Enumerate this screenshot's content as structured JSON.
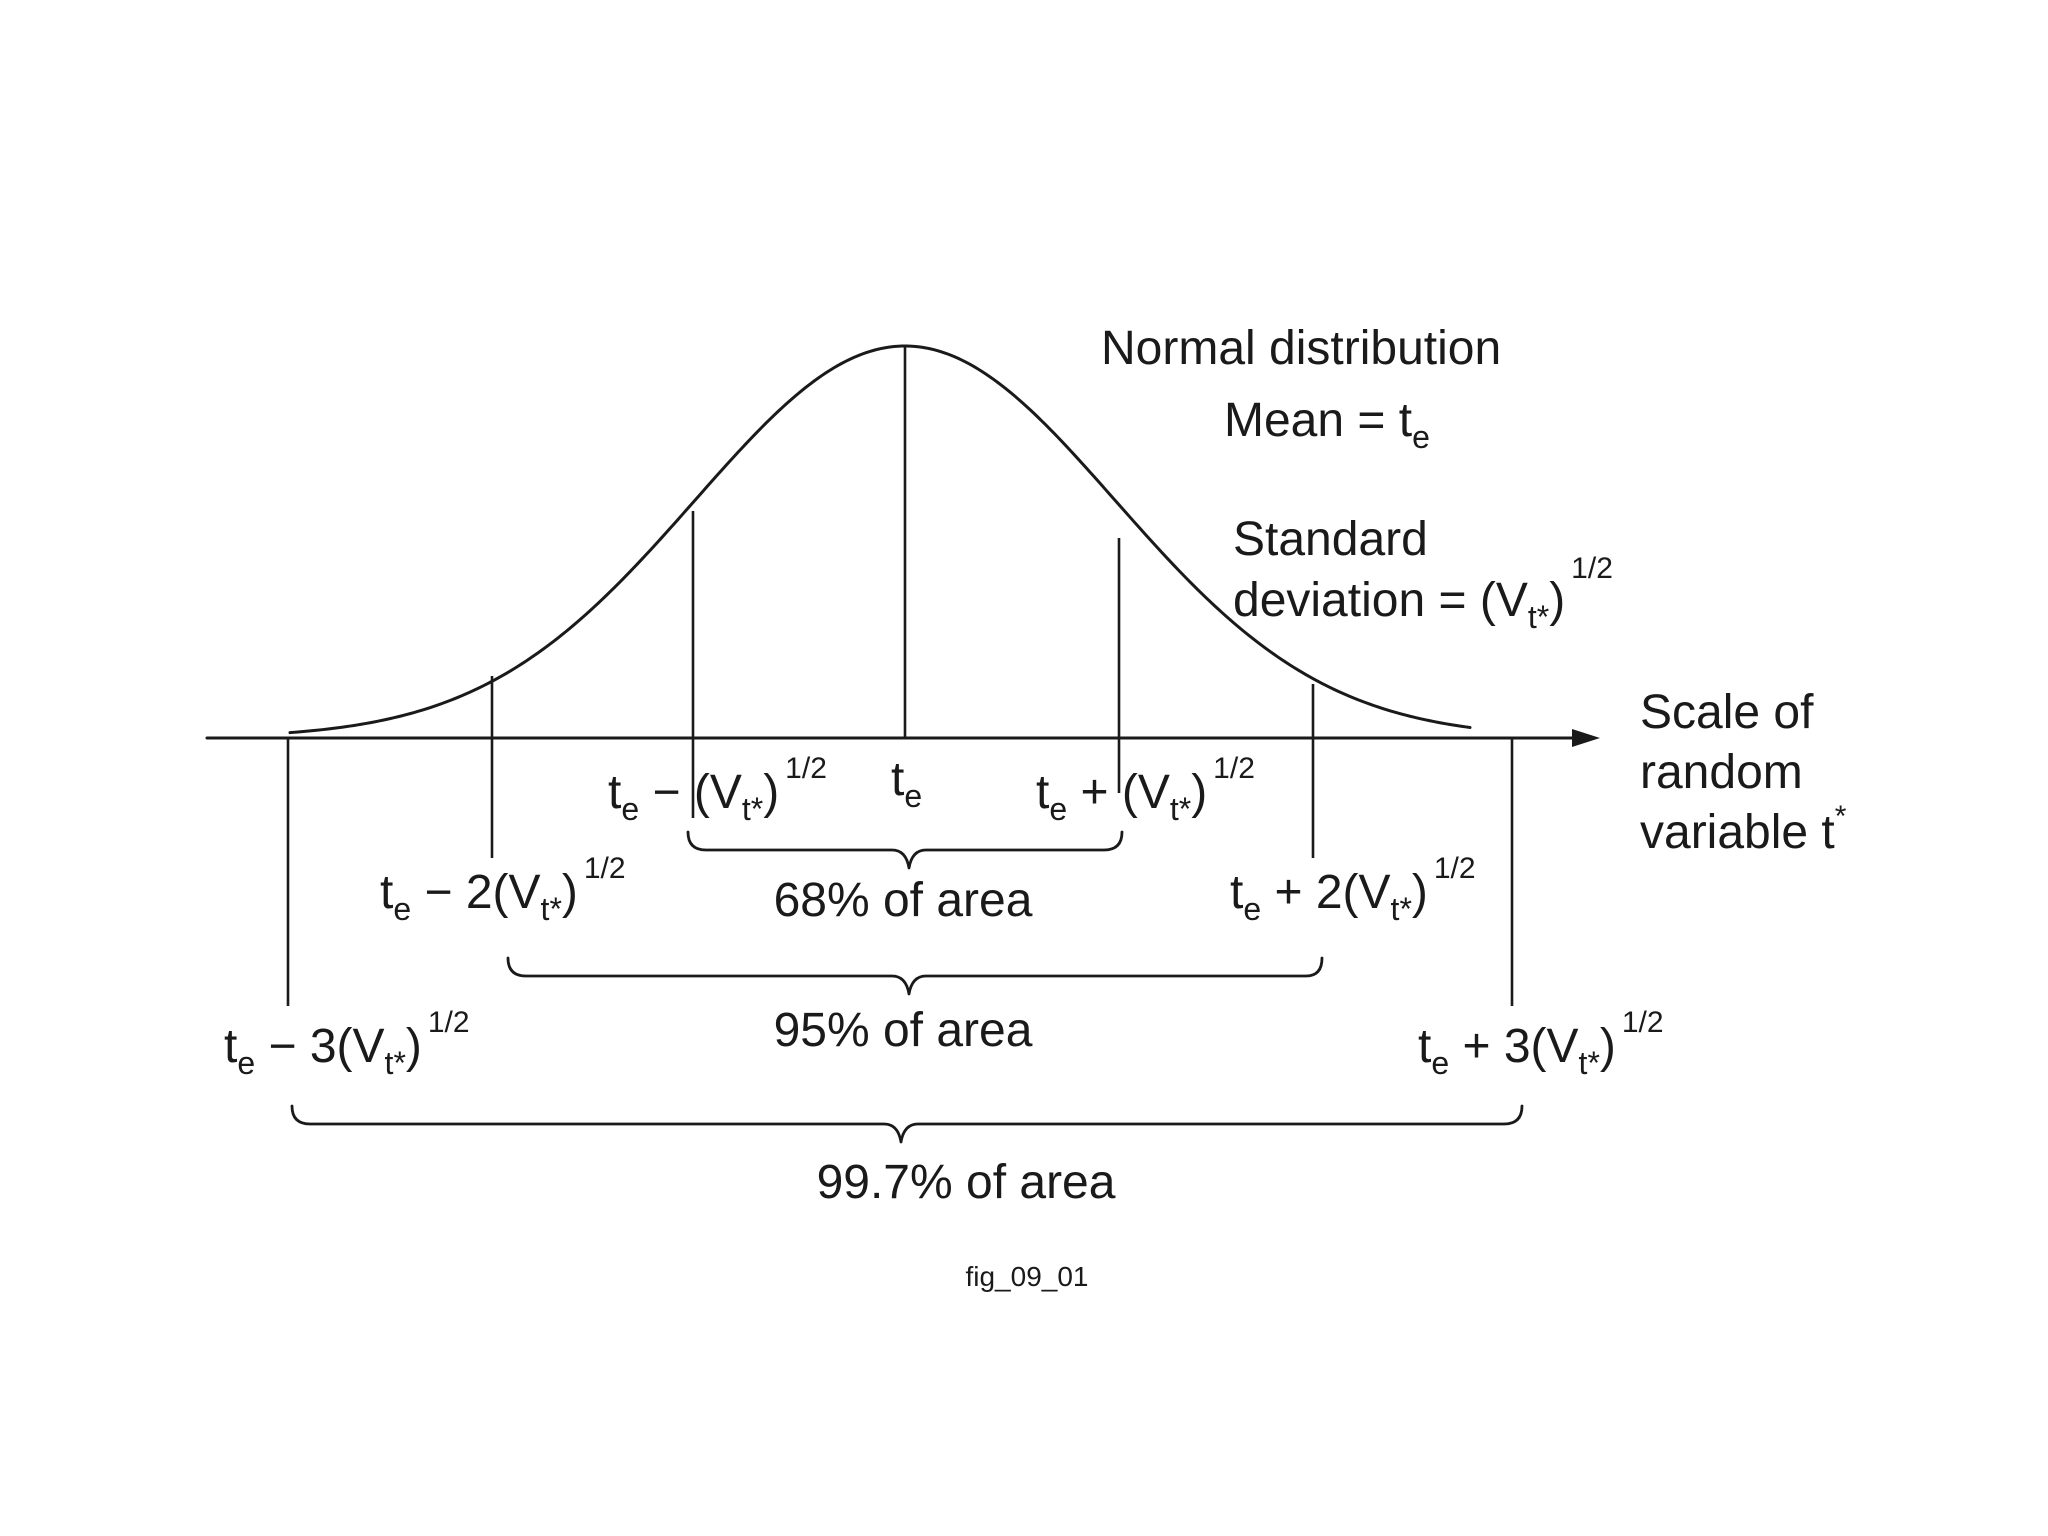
{
  "legend": {
    "title": "Normal distribution",
    "mean_label": "Mean = t",
    "mean_sub": "e",
    "sd_line1": "Standard",
    "sd_line2_pre": "deviation = (V",
    "sd_sub": "t*",
    "sd_close": ")",
    "sd_exp": "1/2"
  },
  "axis": {
    "line1": "Scale of",
    "line2": "random",
    "line3_pre": "variable t",
    "line3_sup": "*"
  },
  "markers": {
    "base": "t",
    "base_sub": "e",
    "minus1_op": " − (V",
    "plus1_op": " + (V",
    "minus2_op": " − 2(V",
    "plus2_op": " + 2(V",
    "minus3_op": " − 3(V",
    "plus3_op": " + 3(V",
    "v_sub": "t*",
    "close": ")",
    "exp": "1/2"
  },
  "areas": {
    "one_sd": "68% of area",
    "two_sd": "95% of area",
    "three_sd": "99.7% of area"
  },
  "caption": "fig_09_01"
}
